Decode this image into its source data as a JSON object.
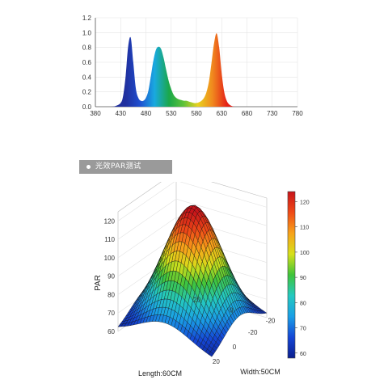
{
  "section_banner": {
    "text": "光效PAR测试"
  },
  "chart_data": [
    {
      "type": "area",
      "x_ticks": [
        "380",
        "430",
        "480",
        "530",
        "580",
        "630",
        "680",
        "730",
        "780"
      ],
      "y_ticks": [
        "0.0",
        "0.2",
        "0.4",
        "0.6",
        "0.8",
        "1.0",
        "1.2"
      ],
      "xlim": [
        380,
        780
      ],
      "ylim": [
        0,
        1.2
      ],
      "grid": true,
      "x": [
        410,
        420,
        430,
        435,
        440,
        445,
        450,
        455,
        460,
        465,
        470,
        475,
        480,
        485,
        490,
        495,
        500,
        505,
        510,
        515,
        520,
        525,
        530,
        535,
        540,
        545,
        550,
        555,
        560,
        565,
        570,
        575,
        580,
        585,
        590,
        595,
        600,
        605,
        610,
        615,
        620,
        625,
        630,
        635,
        640,
        645,
        650,
        655,
        660,
        670,
        680,
        690
      ],
      "values": [
        0.0,
        0.01,
        0.05,
        0.15,
        0.42,
        0.82,
        0.93,
        0.6,
        0.25,
        0.12,
        0.08,
        0.08,
        0.12,
        0.22,
        0.42,
        0.63,
        0.77,
        0.81,
        0.78,
        0.66,
        0.5,
        0.35,
        0.24,
        0.16,
        0.12,
        0.1,
        0.09,
        0.08,
        0.08,
        0.07,
        0.06,
        0.05,
        0.05,
        0.06,
        0.08,
        0.12,
        0.2,
        0.35,
        0.6,
        0.86,
        0.99,
        0.8,
        0.45,
        0.2,
        0.08,
        0.03,
        0.01,
        0.0,
        0.0,
        0.0,
        0.0,
        0.0
      ],
      "colors": [
        "#1f2f9e",
        "#1f4fd0",
        "#19a9e0",
        "#1aa84a",
        "#5ec23a",
        "#e8d21e",
        "#f08a1e",
        "#e52218"
      ]
    },
    {
      "type": "surface",
      "zlabel": "PAR",
      "xlabel": "Length:60CM",
      "ylabel": "Width:50CM",
      "z_ticks": [
        "60",
        "70",
        "80",
        "90",
        "100",
        "110",
        "120"
      ],
      "length_ticks": [
        "20",
        "0",
        "-20"
      ],
      "width_ticks": [
        "-20",
        "0",
        "20"
      ],
      "zlim": [
        60,
        125
      ],
      "peak": 123,
      "corner_min": 60,
      "colorbar_ticks": [
        "60",
        "70",
        "80",
        "90",
        "100",
        "110",
        "120"
      ],
      "colormap": [
        "#0c1f8e",
        "#1446d6",
        "#1a9fe6",
        "#24c9c0",
        "#3fc43a",
        "#d7e01a",
        "#f7a21a",
        "#ef4a17",
        "#c8141a"
      ]
    }
  ]
}
